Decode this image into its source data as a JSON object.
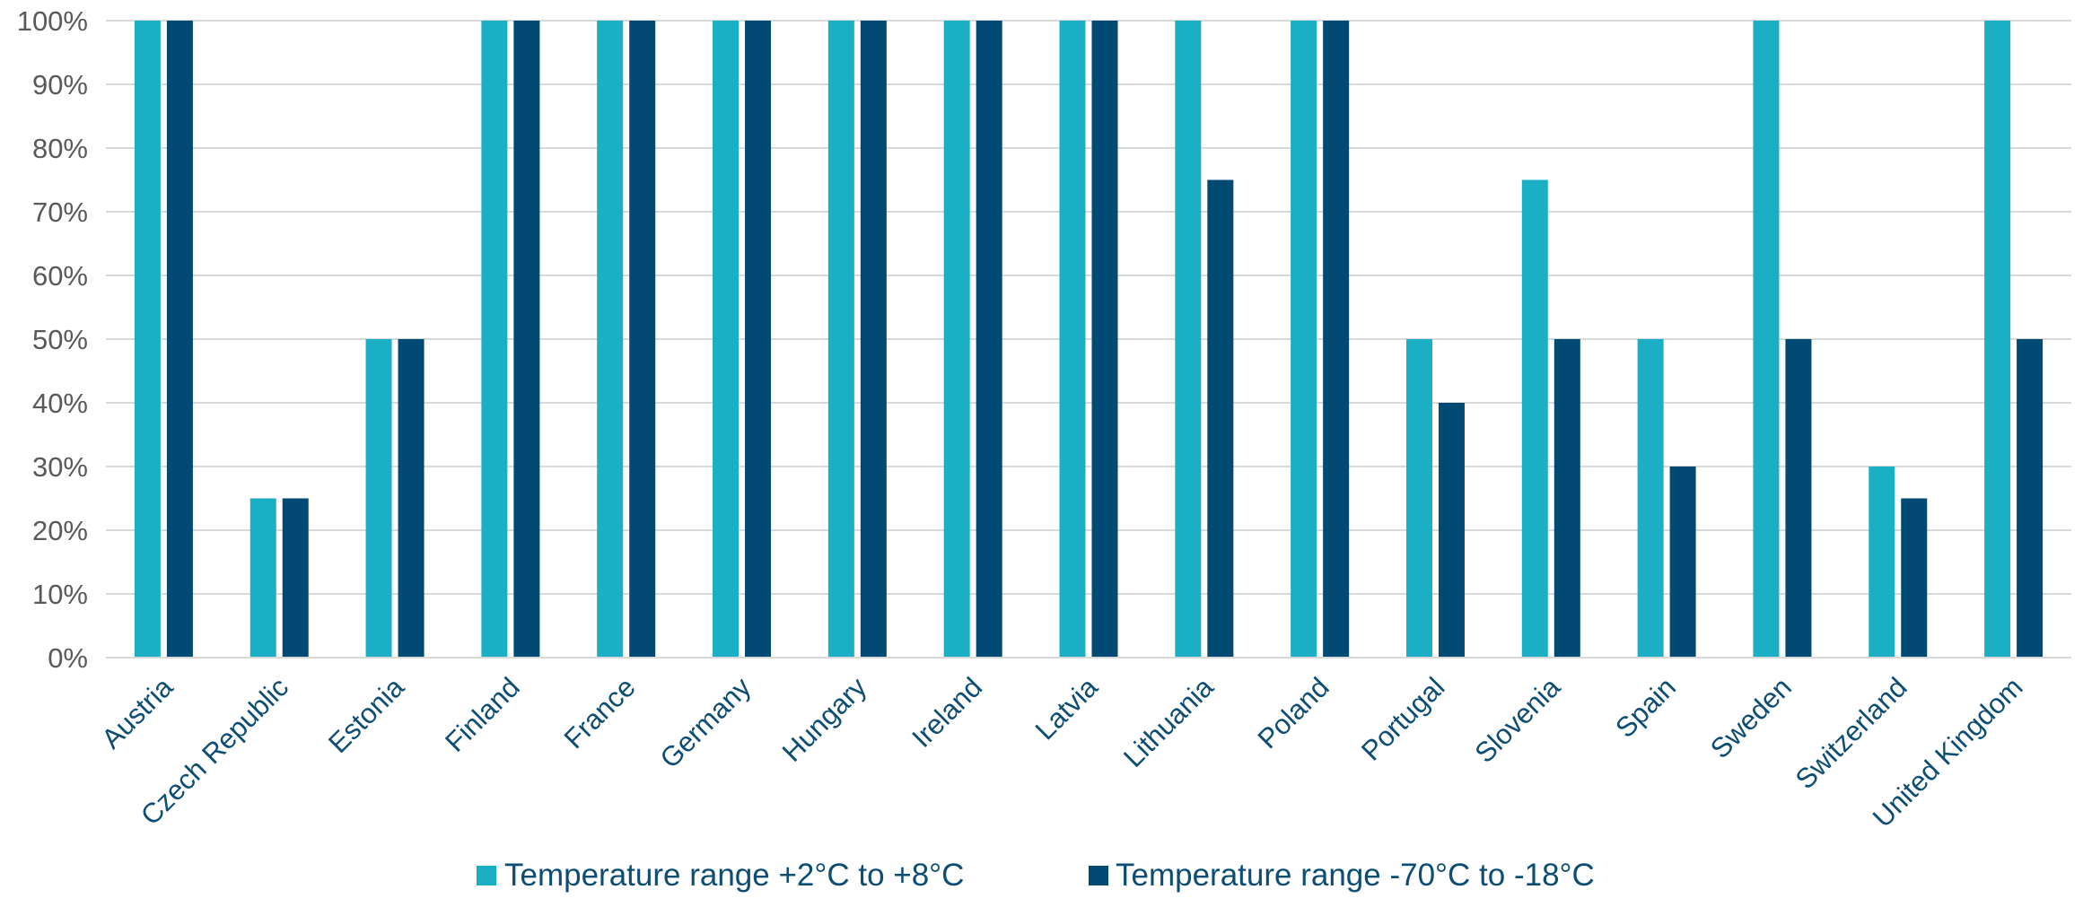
{
  "chart_data": {
    "type": "bar",
    "title": "",
    "xlabel": "",
    "ylabel": "",
    "ylim": [
      0,
      100
    ],
    "y_unit": "%",
    "y_ticks": [
      "0%",
      "10%",
      "20%",
      "30%",
      "40%",
      "50%",
      "60%",
      "70%",
      "80%",
      "90%",
      "100%"
    ],
    "grid": true,
    "legend_position": "bottom",
    "categories": [
      "Austria",
      "Czech Republic",
      "Estonia",
      "Finland",
      "France",
      "Germany",
      "Hungary",
      "Ireland",
      "Latvia",
      "Lithuania",
      "Poland",
      "Portugal",
      "Slovenia",
      "Spain",
      "Sweden",
      "Switzerland",
      "United Kingdom"
    ],
    "series": [
      {
        "name": "Temperature range +2°C to +8°C",
        "color": "#1aafc4",
        "values": [
          100,
          25,
          50,
          100,
          100,
          100,
          100,
          100,
          100,
          100,
          100,
          50,
          75,
          50,
          100,
          30,
          100
        ]
      },
      {
        "name": "Temperature range -70°C to -18°C",
        "color": "#004a73",
        "values": [
          100,
          25,
          50,
          100,
          100,
          100,
          100,
          100,
          100,
          75,
          100,
          40,
          50,
          30,
          50,
          25,
          50
        ]
      }
    ]
  }
}
